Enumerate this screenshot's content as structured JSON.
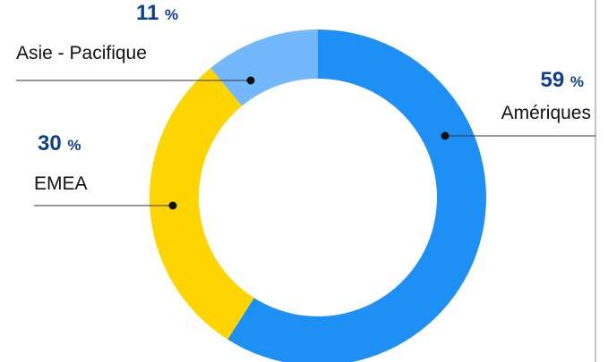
{
  "chart_data": {
    "type": "donut",
    "categories": [
      "Amériques",
      "EMEA",
      "Asie - Pacifique"
    ],
    "values": [
      59,
      30,
      11
    ],
    "value_labels": [
      "59 %",
      "30 %",
      "11 %"
    ],
    "colors": [
      "#1e8ff5",
      "#ffd500",
      "#74b8fc"
    ]
  }
}
